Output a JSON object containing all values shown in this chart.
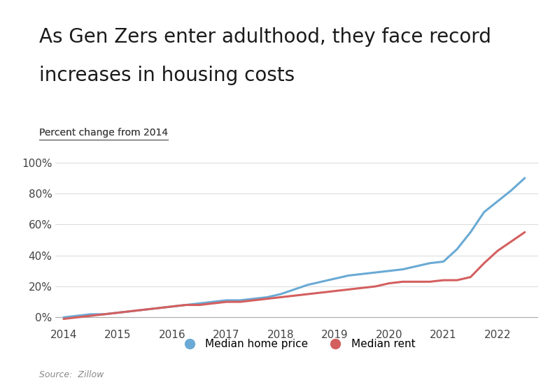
{
  "title_line1": "As Gen Zers enter adulthood, they face record",
  "title_line2": "increases in housing costs",
  "subtitle": "Percent change from 2014",
  "source": "Source:  Zillow",
  "background_color": "#ffffff",
  "plot_bg_color": "#ffffff",
  "grid_color": "#dddddd",
  "home_price_color": "#6aaad4",
  "rent_color": "#d45f5f",
  "home_price_label": "Median home price",
  "rent_label": "Median rent",
  "ylim": [
    -5,
    105
  ],
  "yticks": [
    0,
    20,
    40,
    60,
    80,
    100
  ],
  "x_years": [
    2014.0,
    2014.25,
    2014.5,
    2014.75,
    2015.0,
    2015.25,
    2015.5,
    2015.75,
    2016.0,
    2016.25,
    2016.5,
    2016.75,
    2017.0,
    2017.25,
    2017.5,
    2017.75,
    2018.0,
    2018.25,
    2018.5,
    2018.75,
    2019.0,
    2019.25,
    2019.5,
    2019.75,
    2020.0,
    2020.25,
    2020.5,
    2020.75,
    2021.0,
    2021.25,
    2021.5,
    2021.75,
    2022.0,
    2022.25,
    2022.5
  ],
  "home_price": [
    0,
    1,
    2,
    2,
    3,
    4,
    5,
    6,
    7,
    8,
    9,
    10,
    11,
    11,
    12,
    13,
    15,
    18,
    21,
    23,
    25,
    27,
    28,
    29,
    30,
    31,
    33,
    35,
    36,
    44,
    55,
    68,
    75,
    82,
    90
  ],
  "rent": [
    -1,
    0,
    1,
    2,
    3,
    4,
    5,
    6,
    7,
    8,
    8,
    9,
    10,
    10,
    11,
    12,
    13,
    14,
    15,
    16,
    17,
    18,
    19,
    20,
    22,
    23,
    23,
    23,
    24,
    24,
    26,
    35,
    43,
    49,
    55
  ]
}
